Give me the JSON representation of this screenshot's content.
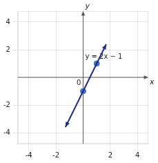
{
  "chart_data": {
    "type": "line",
    "xlabel": "x",
    "ylabel": "y",
    "xlim": [
      -4.8,
      4.8
    ],
    "ylim": [
      -4.8,
      4.8
    ],
    "xticks": [
      -4,
      -2,
      2,
      4
    ],
    "yticks": [
      -4,
      -2,
      2,
      4
    ],
    "grid": true,
    "series": [
      {
        "type": "line",
        "color": "#1F2D8A",
        "x": [
          -1.3,
          1.7
        ],
        "values": [
          -3.6,
          2.4
        ]
      },
      {
        "type": "scatter",
        "color": "#4472C4",
        "marker": "circle",
        "x": [
          0,
          1
        ],
        "values": [
          -1,
          1
        ]
      }
    ],
    "annotations": [
      {
        "text": "y = 2x − 1",
        "x": 0.15,
        "y": 1.5
      },
      {
        "text": "0",
        "x": 0,
        "y": 0
      }
    ]
  }
}
